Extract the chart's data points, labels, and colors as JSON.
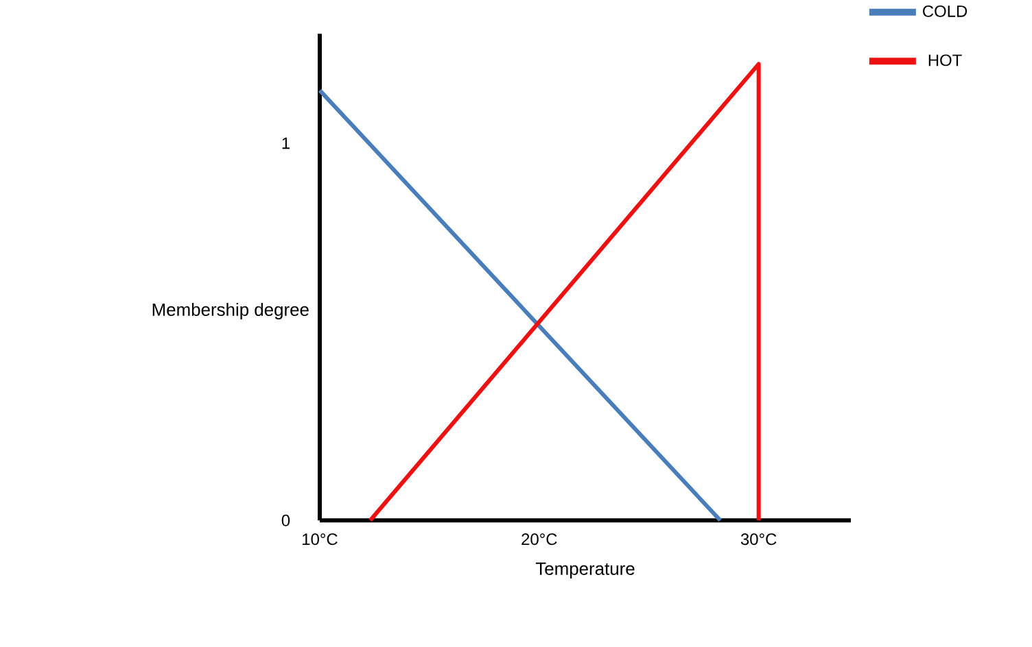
{
  "chart_data": {
    "type": "line",
    "xlabel": "Temperature",
    "ylabel": "Membership degree",
    "xlim": [
      10,
      34.2
    ],
    "ylim": [
      0,
      1.29
    ],
    "xticks": [
      {
        "value": 10,
        "label": "10°C"
      },
      {
        "value": 20,
        "label": "20°C"
      },
      {
        "value": 30,
        "label": "30°C"
      }
    ],
    "yticks": [
      0,
      1
    ],
    "series": [
      {
        "name": "COLD",
        "color": "#4a7ebb",
        "x": [
          10,
          28.25
        ],
        "values": [
          1.14,
          0
        ]
      },
      {
        "name": "HOT",
        "color": "#ee1111",
        "x": [
          12.3,
          30,
          30
        ],
        "values": [
          0,
          1.21,
          0
        ]
      }
    ],
    "legend": "top right",
    "grid": false,
    "marker": "none",
    "line_style": "solid"
  }
}
